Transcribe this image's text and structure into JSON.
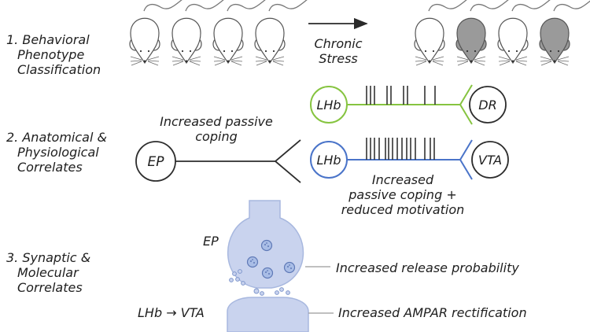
{
  "sections": [
    {
      "number": "1.",
      "lines": [
        "Behavioral",
        "Phenotype",
        "Classification"
      ]
    },
    {
      "number": "2.",
      "lines": [
        "Anatomical &",
        "Physiological",
        "Correlates"
      ]
    },
    {
      "number": "3.",
      "lines": [
        "Synaptic &",
        "Molecular",
        "Correlates"
      ]
    }
  ],
  "stress": {
    "lines": [
      "Chronic",
      "Stress"
    ]
  },
  "mice_before": [
    "white",
    "white",
    "white",
    "white"
  ],
  "mice_after": [
    "white",
    "gray",
    "white",
    "gray"
  ],
  "colors": {
    "green_pathway": "#86c440",
    "blue_pathway": "#4a74c9",
    "terminal_fill": "#c9d3ee",
    "vesicle_fill": "#a9bde6",
    "mouse_gray": "#9a9a9a"
  },
  "circuit": {
    "ep_node": "EP",
    "ep_label": [
      "Increased passive",
      "coping"
    ],
    "lhb_top": "LHb",
    "dr_node": "DR",
    "lhb_bottom": "LHb",
    "vta_node": "VTA",
    "vta_label": [
      "Increased",
      "passive coping +",
      "reduced motivation"
    ]
  },
  "synapse": {
    "pre_label": "EP",
    "post_label": "LHb → VTA",
    "pre_annotation": "Increased release probability",
    "post_annotation": "Increased AMPAR rectification"
  }
}
